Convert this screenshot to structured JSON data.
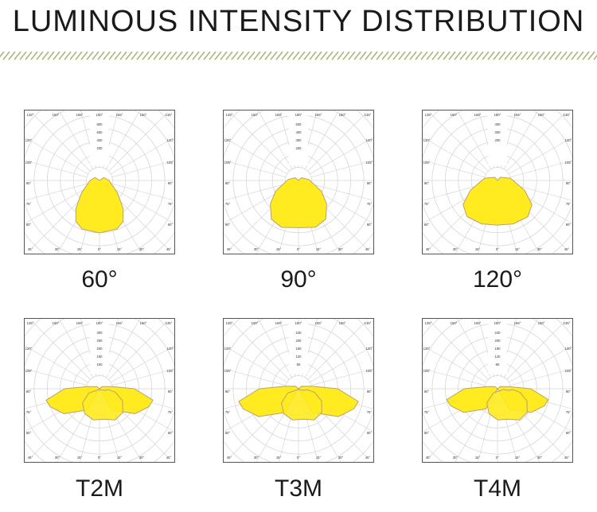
{
  "title": "LUMINOUS INTENSITY DISTRIBUTION",
  "colors": {
    "fill": "#ffeb1f",
    "outline": "#b8a36a",
    "grid": "#d6d6d6",
    "text": "#1a1a1a",
    "hatch": "#a8b87a"
  },
  "chart_data": [
    {
      "type": "polar",
      "caption": "60°",
      "angle_labels": [
        "135°",
        "150°",
        "165°",
        "180°",
        "165°",
        "150°",
        "135°",
        "120°",
        "105°",
        "90°",
        "75°",
        "60°",
        "45°",
        "30°",
        "15°",
        "0°"
      ],
      "radial_labels": [
        "800",
        "600",
        "400",
        "200"
      ],
      "series": [
        {
          "beam_angle": 60
        }
      ]
    },
    {
      "type": "polar",
      "caption": "90°",
      "angle_labels": [
        "135°",
        "150°",
        "165°",
        "180°",
        "165°",
        "150°",
        "135°",
        "120°",
        "105°",
        "90°",
        "75°",
        "60°",
        "45°",
        "30°",
        "15°",
        "0°"
      ],
      "radial_labels": [
        "500",
        "400",
        "300",
        "200"
      ],
      "series": [
        {
          "beam_angle": 90
        }
      ]
    },
    {
      "type": "polar",
      "caption": "120°",
      "angle_labels": [
        "135°",
        "150°",
        "165°",
        "180°",
        "165°",
        "150°",
        "135°",
        "120°",
        "105°",
        "90°",
        "75°",
        "60°",
        "45°",
        "30°",
        "15°",
        "0°"
      ],
      "radial_labels": [
        "400",
        "300",
        "200"
      ],
      "series": [
        {
          "beam_angle": 120
        }
      ]
    },
    {
      "type": "polar",
      "caption": "T2M",
      "angle_labels": [
        "135°",
        "150°",
        "165°",
        "180°",
        "165°",
        "150°",
        "135°",
        "120°",
        "105°",
        "90°",
        "75°",
        "60°",
        "45°",
        "30°",
        "15°",
        "0°"
      ],
      "radial_labels": [
        "300",
        "250",
        "200",
        "150",
        "100"
      ],
      "series": [
        {
          "distribution": "Type II medium"
        }
      ]
    },
    {
      "type": "polar",
      "caption": "T3M",
      "angle_labels": [
        "135°",
        "150°",
        "165°",
        "180°",
        "165°",
        "150°",
        "135°",
        "120°",
        "105°",
        "90°",
        "75°",
        "60°",
        "45°",
        "30°",
        "15°",
        "0°"
      ],
      "radial_labels": [
        "240",
        "200",
        "160",
        "120",
        "80"
      ],
      "series": [
        {
          "distribution": "Type III medium"
        }
      ]
    },
    {
      "type": "polar",
      "caption": "T4M",
      "angle_labels": [
        "135°",
        "150°",
        "165°",
        "180°",
        "165°",
        "150°",
        "135°",
        "120°",
        "105°",
        "90°",
        "75°",
        "60°",
        "45°",
        "30°",
        "15°",
        "0°"
      ],
      "radial_labels": [
        "240",
        "200",
        "160",
        "120",
        "80"
      ],
      "series": [
        {
          "distribution": "Type IV medium"
        }
      ]
    }
  ]
}
